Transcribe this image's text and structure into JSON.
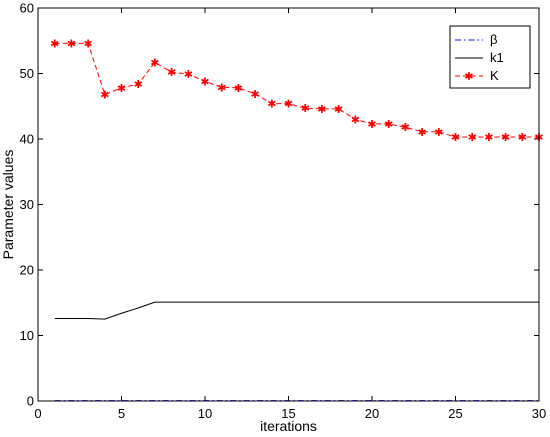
{
  "chart_data": {
    "type": "line",
    "title": "",
    "xlabel": "iterations",
    "ylabel": "Parameter values",
    "xlim": [
      0,
      30
    ],
    "ylim": [
      0,
      60
    ],
    "xticks": [
      0,
      5,
      10,
      15,
      20,
      25,
      30
    ],
    "yticks": [
      0,
      10,
      20,
      30,
      40,
      50,
      60
    ],
    "grid": false,
    "legend_position": "top-right",
    "series": [
      {
        "name": "β",
        "color": "#0000ff",
        "line_style": "dash-dot",
        "marker": "none",
        "x": [
          1,
          30
        ],
        "y": [
          0.05,
          0.05
        ]
      },
      {
        "name": "k1",
        "color": "#000000",
        "line_style": "solid",
        "marker": "none",
        "x": [
          1,
          2,
          3,
          4,
          5,
          6,
          7,
          8,
          9,
          10,
          11,
          12,
          13,
          14,
          15,
          16,
          17,
          18,
          19,
          20,
          21,
          22,
          23,
          24,
          25,
          26,
          27,
          28,
          29,
          30
        ],
        "y": [
          12.6,
          12.6,
          12.6,
          12.5,
          13.4,
          14.2,
          15.1,
          15.1,
          15.1,
          15.1,
          15.1,
          15.1,
          15.1,
          15.1,
          15.1,
          15.1,
          15.1,
          15.1,
          15.1,
          15.1,
          15.1,
          15.1,
          15.1,
          15.1,
          15.1,
          15.1,
          15.1,
          15.1,
          15.1,
          15.1
        ]
      },
      {
        "name": "K",
        "color": "#ff0000",
        "line_style": "dashed",
        "marker": "star",
        "x": [
          1,
          2,
          3,
          4,
          5,
          6,
          7,
          8,
          9,
          10,
          11,
          12,
          13,
          14,
          15,
          16,
          17,
          18,
          19,
          20,
          21,
          22,
          23,
          24,
          25,
          26,
          27,
          28,
          29,
          30
        ],
        "y": [
          54.6,
          54.6,
          54.6,
          46.8,
          47.8,
          48.4,
          51.7,
          50.2,
          49.9,
          48.8,
          47.9,
          47.8,
          46.9,
          45.4,
          45.4,
          44.7,
          44.6,
          44.6,
          43.0,
          42.3,
          42.3,
          41.8,
          41.1,
          41.1,
          40.3,
          40.3,
          40.3,
          40.3,
          40.3,
          40.3
        ]
      }
    ]
  }
}
